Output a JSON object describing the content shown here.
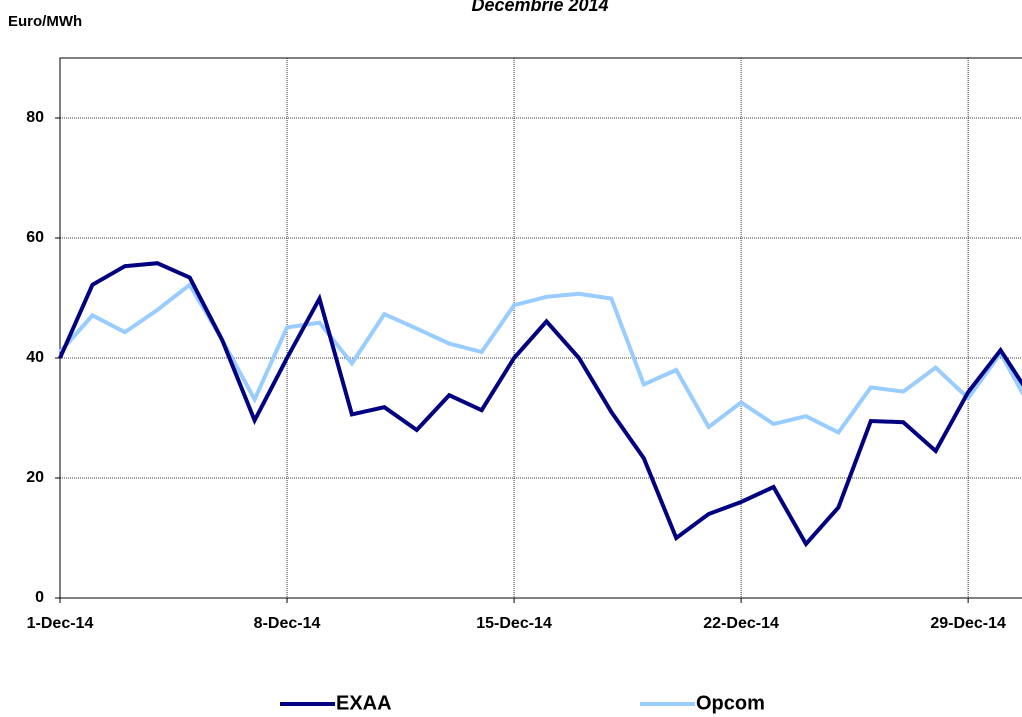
{
  "chart_data": {
    "type": "line",
    "title": "Decembrie 2014",
    "y_label": "Euro/MWh",
    "x": [
      "2014-12-01",
      "2014-12-02",
      "2014-12-03",
      "2014-12-04",
      "2014-12-05",
      "2014-12-06",
      "2014-12-07",
      "2014-12-08",
      "2014-12-09",
      "2014-12-10",
      "2014-12-11",
      "2014-12-12",
      "2014-12-13",
      "2014-12-14",
      "2014-12-15",
      "2014-12-16",
      "2014-12-17",
      "2014-12-18",
      "2014-12-19",
      "2014-12-20",
      "2014-12-21",
      "2014-12-22",
      "2014-12-23",
      "2014-12-24",
      "2014-12-25",
      "2014-12-26",
      "2014-12-27",
      "2014-12-28",
      "2014-12-29",
      "2014-12-30",
      "2014-12-31"
    ],
    "series": [
      {
        "name": "EXAA",
        "color": "#000080",
        "values": [
          40,
          52.2,
          55.3,
          55.8,
          53.4,
          43,
          29.6,
          40,
          49.9,
          30.6,
          31.8,
          28,
          33.8,
          31.3,
          40,
          46.1,
          40,
          31,
          23.3,
          10,
          14,
          16,
          18.5,
          9,
          15.1,
          29.5,
          29.3,
          24.5,
          34.3,
          41.3,
          33
        ]
      },
      {
        "name": "Opcom",
        "color": "#99ccff",
        "values": [
          41,
          47.1,
          44.3,
          48,
          52.2,
          43,
          33.1,
          45.1,
          45.9,
          39.1,
          47.3,
          44.9,
          42.4,
          41,
          48.8,
          50.2,
          50.7,
          49.9,
          35.6,
          38,
          28.5,
          32.6,
          29,
          30.3,
          27.6,
          35.1,
          34.4,
          38.4,
          33.3,
          40.8,
          31
        ]
      }
    ],
    "xlim": [
      "2014-12-01",
      "2014-12-31"
    ],
    "xticks": [
      {
        "value": "2014-12-01",
        "label": "1-Dec-14"
      },
      {
        "value": "2014-12-08",
        "label": "8-Dec-14"
      },
      {
        "value": "2014-12-15",
        "label": "15-Dec-14"
      },
      {
        "value": "2014-12-22",
        "label": "22-Dec-14"
      },
      {
        "value": "2014-12-29",
        "label": "29-Dec-14"
      }
    ],
    "ylim": [
      0,
      90
    ],
    "yticks": [
      0,
      20,
      40,
      60,
      80
    ],
    "grid": true,
    "legend": "bottom"
  }
}
